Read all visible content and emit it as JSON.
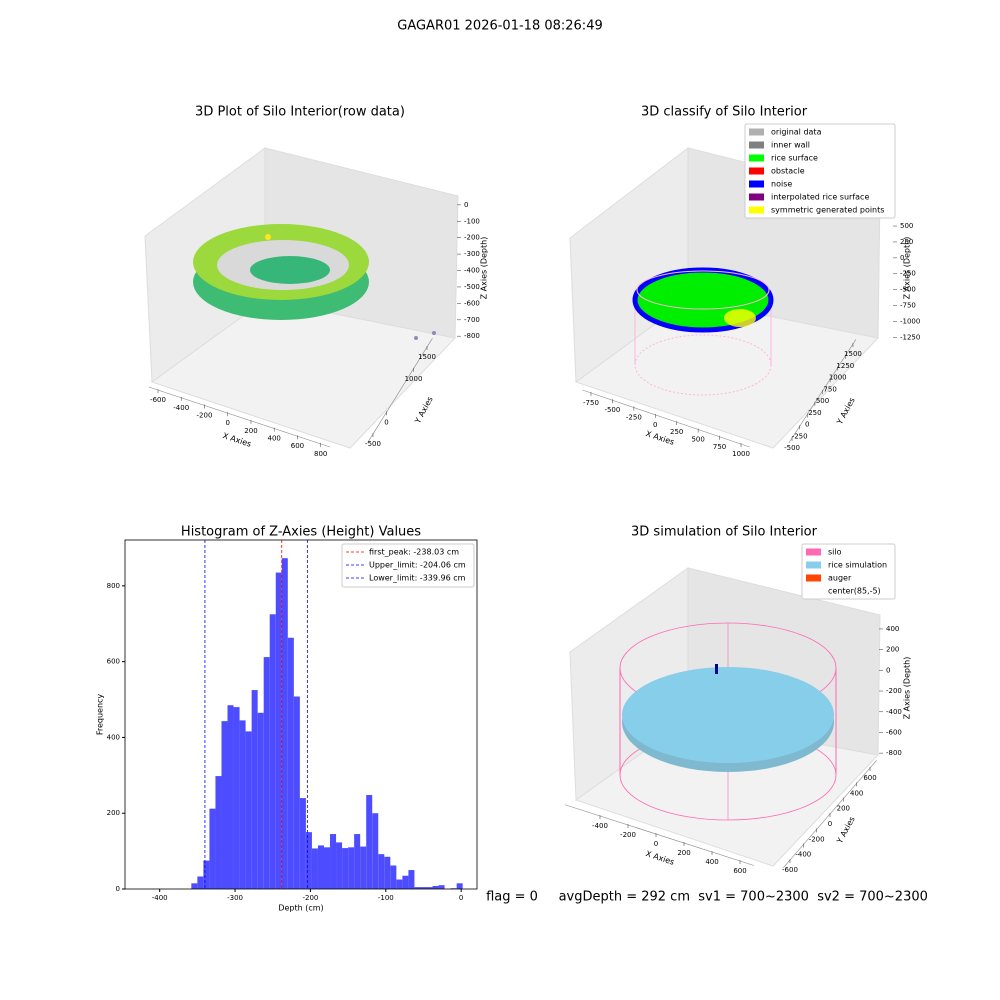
{
  "title": "GAGAR01 2026-01-18 08:26:49",
  "footer": "flag = 0     avgDepth = 292 cm  sv1 = 700~2300  sv2 = 700~2300",
  "chart_data": [
    {
      "type": "scatter3d",
      "title": "3D Plot of Silo Interior(row data)",
      "xlabel": "X Axies",
      "ylabel": "Y Axies",
      "zlabel": "Z Axies (Depth)",
      "xlim": [
        -680,
        880
      ],
      "xticks": [
        -600,
        -400,
        -200,
        0,
        200,
        400,
        600,
        800
      ],
      "ylim": [
        -700,
        1700
      ],
      "yticks": [
        -500,
        0,
        1000,
        1500
      ],
      "zlim": [
        -870,
        60
      ],
      "zticks": [
        0,
        -100,
        -200,
        -300,
        -400,
        -500,
        -600,
        -700,
        -800
      ]
    },
    {
      "type": "scatter3d",
      "title": "3D classify of Silo Interior",
      "xlabel": "X Axies",
      "ylabel": "Y Axies",
      "zlabel": "Z Axies (Depth)",
      "xlim": [
        -850,
        1100
      ],
      "xticks": [
        -750,
        -500,
        -250,
        0,
        250,
        500,
        750,
        1000
      ],
      "ylim": [
        -600,
        1600
      ],
      "yticks": [
        -500,
        -250,
        0,
        250,
        500,
        750,
        1000,
        1250,
        1500
      ],
      "zlim": [
        -1350,
        650
      ],
      "zticks": [
        500,
        250,
        0,
        -250,
        -500,
        -750,
        -1000,
        -1250
      ],
      "legend": [
        {
          "name": "original data",
          "color": "#b0b0b0"
        },
        {
          "name": "inner wall",
          "color": "#808080"
        },
        {
          "name": "rice surface",
          "color": "#00ff00"
        },
        {
          "name": "obstacle",
          "color": "#ff0000"
        },
        {
          "name": "noise",
          "color": "#0000ff"
        },
        {
          "name": "interpolated rice surface",
          "color": "#800080"
        },
        {
          "name": "symmetric generated points",
          "color": "#ffff00"
        }
      ]
    },
    {
      "type": "histogram",
      "title": "Histogram of Z-Axies (Height) Values",
      "xlabel": "Depth (cm)",
      "ylabel": "Frequency",
      "color": "#4d4dff",
      "bins": [
        -358,
        -350,
        -342,
        -334,
        -326,
        -318,
        -310,
        -302,
        -294,
        -286,
        -278,
        -270,
        -262,
        -254,
        -246,
        -238,
        -230,
        -222,
        -214,
        -206,
        -198,
        -190,
        -182,
        -174,
        -166,
        -158,
        -150,
        -142,
        -134,
        -126,
        -118,
        -110,
        -102,
        -94,
        -86,
        -78,
        -70,
        -62,
        -54,
        -46,
        -38,
        -30,
        -22,
        -14,
        -6,
        2
      ],
      "counts": [
        15,
        33,
        75,
        212,
        298,
        443,
        485,
        480,
        445,
        416,
        525,
        465,
        612,
        725,
        835,
        873,
        663,
        508,
        240,
        150,
        107,
        115,
        110,
        145,
        123,
        108,
        110,
        145,
        112,
        248,
        200,
        92,
        85,
        62,
        25,
        35,
        50,
        5,
        5,
        5,
        8,
        10,
        0,
        2,
        15
      ],
      "xlim": [
        -446,
        21
      ],
      "xticks": [
        -400,
        -300,
        -200,
        -100,
        0
      ],
      "ylim": [
        0,
        921
      ],
      "yticks": [
        0,
        200,
        400,
        600,
        800
      ],
      "vlines": [
        {
          "name": "first_peak: -238.03 cm",
          "value": -238.03,
          "color": "#ff0000"
        },
        {
          "name": "Upper_limit: -204.06 cm",
          "value": -204.06,
          "color": "#0000ff"
        },
        {
          "name": "Lower_limit: -339.96 cm",
          "value": -339.96,
          "color": "#0000ff"
        }
      ],
      "legend_position": "upper right"
    },
    {
      "type": "scatter3d",
      "title": "3D simulation of Silo Interior",
      "xlabel": "X Axies",
      "ylabel": "Y Axies",
      "zlabel": "Z Axies (Depth)",
      "xlim": [
        -650,
        700
      ],
      "xticks": [
        -400,
        -200,
        0,
        200,
        400,
        600
      ],
      "ylim": [
        -700,
        700
      ],
      "yticks": [
        -600,
        -400,
        -200,
        0,
        200,
        400,
        600
      ],
      "zlim": [
        -900,
        500
      ],
      "zticks": [
        400,
        200,
        0,
        -200,
        -400,
        -600,
        -800
      ],
      "legend": [
        {
          "name": "silo",
          "color": "#ff69b4"
        },
        {
          "name": "rice simulation",
          "color": "#87ceeb"
        },
        {
          "name": "auger",
          "color": "#ff4500"
        },
        {
          "name": "center(85,-5)",
          "color": "#ffffff"
        }
      ]
    }
  ]
}
